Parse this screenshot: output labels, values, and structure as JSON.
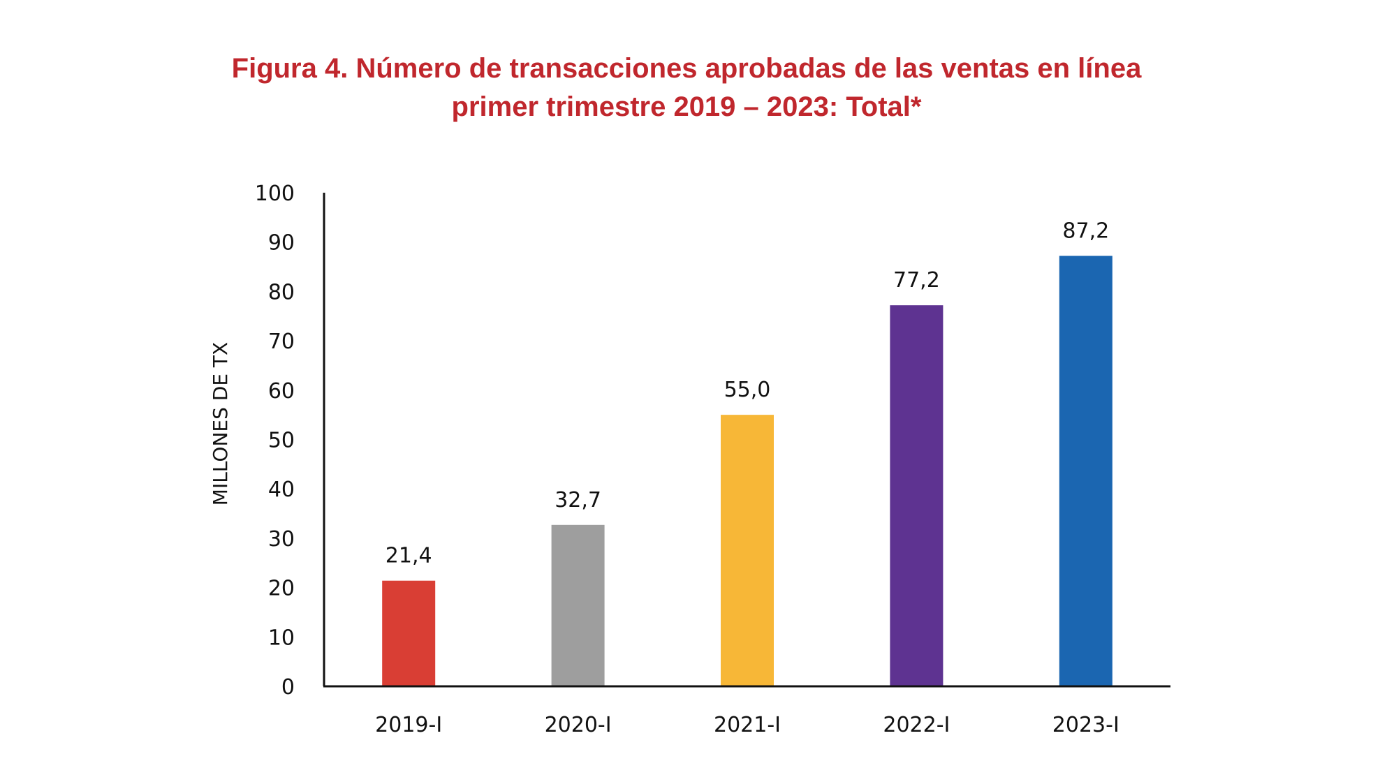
{
  "chart_data": {
    "type": "bar",
    "title_line1": "Figura 4.  Número de transacciones aprobadas de las ventas en línea",
    "title_line2": "primer trimestre 2019 – 2023: Total*",
    "xlabel": "",
    "ylabel": "MILLONES DE TX",
    "ylim": [
      0,
      100
    ],
    "yticks": [
      0,
      10,
      20,
      30,
      40,
      50,
      60,
      70,
      80,
      90,
      100
    ],
    "grid": false,
    "categories": [
      "2019-I",
      "2020-I",
      "2021-I",
      "2022-I",
      "2023-I"
    ],
    "values": [
      21.4,
      32.7,
      55.0,
      77.2,
      87.2
    ],
    "data_labels": [
      "21,4",
      "32,7",
      "55,0",
      "77,2",
      "87,2"
    ],
    "colors": [
      "#d93e34",
      "#9e9e9e",
      "#f7b737",
      "#5e3391",
      "#1b66b1"
    ]
  }
}
